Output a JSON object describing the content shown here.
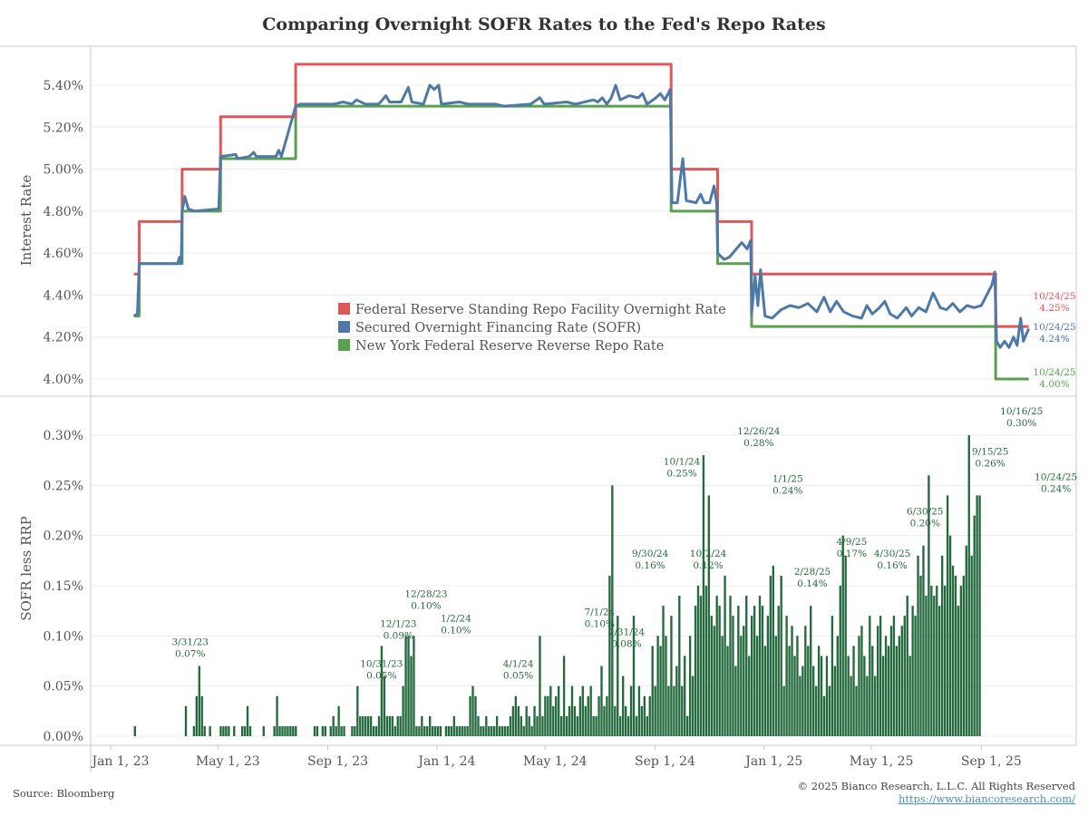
{
  "title": "Comparing Overnight SOFR Rates to the Fed's Repo Rates",
  "footer": {
    "source": "Source: Bloomberg",
    "copyright": "© 2025 Bianco Research, L.L.C. All Rights Reserved",
    "url": "https://www.biancoresearch.com/"
  },
  "colors": {
    "srf": "#e15759",
    "sofr": "#4e79a7",
    "rrp": "#59a14f",
    "spread": "#256a3e",
    "grid": "#ececec",
    "axis": "#c8c8c8"
  },
  "chart_data": [
    {
      "type": "line",
      "title": "Comparing Overnight SOFR Rates to the Fed's Repo Rates",
      "ylabel": "Interest Rate",
      "ylim": [
        3.95,
        5.56
      ],
      "yticks": [
        "4.00%",
        "4.20%",
        "4.40%",
        "4.60%",
        "4.80%",
        "5.00%",
        "5.20%",
        "5.40%"
      ],
      "ytick_values": [
        4.0,
        4.2,
        4.4,
        4.6,
        4.8,
        5.0,
        5.2,
        5.4
      ],
      "xticks": [
        "Jan 1, 23",
        "May 1, 23",
        "Sep 1, 23",
        "Jan 1, 24",
        "May 1, 24",
        "Sep 1, 24",
        "Jan 1, 25",
        "May 1, 25",
        "Sep 1, 25"
      ],
      "xtick_days": [
        0,
        120,
        243,
        365,
        486,
        609,
        731,
        851,
        974
      ],
      "xlim_days": [
        -22,
        1080
      ],
      "grid": true,
      "legend_position": "center",
      "series": [
        {
          "name": "Federal Reserve Standing Repo Facility Overnight Rate",
          "key": "srf",
          "steps": [
            [
              26,
              4.5
            ],
            [
              32,
              4.75
            ],
            [
              80,
              5.0
            ],
            [
              123,
              5.25
            ],
            [
              207,
              5.5
            ],
            [
              627,
              5.0
            ],
            [
              679,
              4.75
            ],
            [
              717,
              4.5
            ],
            [
              990,
              4.25
            ],
            [
              1027,
              4.25
            ]
          ],
          "end_label": "10/24/25",
          "end_value": "4.25%"
        },
        {
          "name": "Secured Overnight Financing Rate (SOFR)",
          "key": "sofr",
          "steps": [
            [
              26,
              4.3
            ],
            [
              30,
              4.31
            ],
            [
              32,
              4.55
            ],
            [
              75,
              4.55
            ],
            [
              77,
              4.58
            ],
            [
              79,
              4.55
            ],
            [
              80,
              4.8
            ],
            [
              83,
              4.87
            ],
            [
              87,
              4.81
            ],
            [
              94,
              4.8
            ],
            [
              121,
              4.81
            ],
            [
              123,
              5.06
            ],
            [
              140,
              5.07
            ],
            [
              142,
              5.05
            ],
            [
              155,
              5.06
            ],
            [
              160,
              5.08
            ],
            [
              163,
              5.06
            ],
            [
              185,
              5.06
            ],
            [
              188,
              5.09
            ],
            [
              191,
              5.06
            ],
            [
              207,
              5.3
            ],
            [
              212,
              5.31
            ],
            [
              230,
              5.31
            ],
            [
              250,
              5.31
            ],
            [
              260,
              5.32
            ],
            [
              270,
              5.31
            ],
            [
              275,
              5.33
            ],
            [
              285,
              5.31
            ],
            [
              300,
              5.31
            ],
            [
              308,
              5.35
            ],
            [
              312,
              5.32
            ],
            [
              325,
              5.32
            ],
            [
              333,
              5.39
            ],
            [
              337,
              5.32
            ],
            [
              350,
              5.31
            ],
            [
              357,
              5.4
            ],
            [
              362,
              5.38
            ],
            [
              367,
              5.4
            ],
            [
              370,
              5.31
            ],
            [
              390,
              5.32
            ],
            [
              400,
              5.31
            ],
            [
              430,
              5.31
            ],
            [
              440,
              5.3
            ],
            [
              470,
              5.31
            ],
            [
              480,
              5.34
            ],
            [
              485,
              5.31
            ],
            [
              510,
              5.32
            ],
            [
              520,
              5.31
            ],
            [
              540,
              5.33
            ],
            [
              545,
              5.32
            ],
            [
              550,
              5.34
            ],
            [
              555,
              5.31
            ],
            [
              560,
              5.34
            ],
            [
              565,
              5.4
            ],
            [
              570,
              5.33
            ],
            [
              580,
              5.35
            ],
            [
              590,
              5.34
            ],
            [
              595,
              5.36
            ],
            [
              600,
              5.31
            ],
            [
              610,
              5.34
            ],
            [
              615,
              5.36
            ],
            [
              620,
              5.33
            ],
            [
              626,
              5.38
            ],
            [
              628,
              4.84
            ],
            [
              634,
              4.84
            ],
            [
              640,
              5.05
            ],
            [
              644,
              4.85
            ],
            [
              655,
              4.84
            ],
            [
              660,
              4.88
            ],
            [
              664,
              4.84
            ],
            [
              670,
              4.84
            ],
            [
              675,
              4.92
            ],
            [
              678,
              4.84
            ],
            [
              679,
              4.6
            ],
            [
              686,
              4.57
            ],
            [
              692,
              4.58
            ],
            [
              700,
              4.62
            ],
            [
              706,
              4.65
            ],
            [
              712,
              4.62
            ],
            [
              716,
              4.66
            ],
            [
              717,
              4.31
            ],
            [
              721,
              4.49
            ],
            [
              724,
              4.35
            ],
            [
              727,
              4.52
            ],
            [
              732,
              4.3
            ],
            [
              740,
              4.29
            ],
            [
              750,
              4.33
            ],
            [
              760,
              4.35
            ],
            [
              770,
              4.34
            ],
            [
              780,
              4.36
            ],
            [
              790,
              4.32
            ],
            [
              798,
              4.39
            ],
            [
              805,
              4.32
            ],
            [
              812,
              4.37
            ],
            [
              820,
              4.32
            ],
            [
              830,
              4.3
            ],
            [
              840,
              4.29
            ],
            [
              846,
              4.35
            ],
            [
              852,
              4.31
            ],
            [
              860,
              4.34
            ],
            [
              866,
              4.37
            ],
            [
              872,
              4.31
            ],
            [
              880,
              4.29
            ],
            [
              890,
              4.34
            ],
            [
              896,
              4.3
            ],
            [
              904,
              4.34
            ],
            [
              912,
              4.32
            ],
            [
              920,
              4.41
            ],
            [
              928,
              4.34
            ],
            [
              935,
              4.33
            ],
            [
              942,
              4.36
            ],
            [
              950,
              4.32
            ],
            [
              958,
              4.35
            ],
            [
              966,
              4.34
            ],
            [
              974,
              4.35
            ],
            [
              980,
              4.4
            ],
            [
              986,
              4.45
            ],
            [
              989,
              4.51
            ],
            [
              991,
              4.18
            ],
            [
              995,
              4.15
            ],
            [
              1000,
              4.18
            ],
            [
              1005,
              4.15
            ],
            [
              1010,
              4.2
            ],
            [
              1014,
              4.16
            ],
            [
              1018,
              4.29
            ],
            [
              1021,
              4.18
            ],
            [
              1024,
              4.21
            ],
            [
              1027,
              4.24
            ]
          ],
          "end_label": "10/24/25",
          "end_value": "4.24%"
        },
        {
          "name": "New York Federal Reserve Reverse Repo Rate",
          "key": "rrp",
          "steps": [
            [
              26,
              4.3
            ],
            [
              32,
              4.55
            ],
            [
              80,
              4.8
            ],
            [
              123,
              5.05
            ],
            [
              207,
              5.3
            ],
            [
              627,
              4.8
            ],
            [
              679,
              4.55
            ],
            [
              717,
              4.25
            ],
            [
              990,
              4.0
            ],
            [
              1027,
              4.0
            ]
          ],
          "end_label": "10/24/25",
          "end_value": "4.00%"
        }
      ]
    },
    {
      "type": "bar",
      "ylabel": "SOFR less RRP",
      "ylim": [
        -0.005,
        0.33
      ],
      "yticks": [
        "0.00%",
        "0.05%",
        "0.10%",
        "0.15%",
        "0.20%",
        "0.25%",
        "0.30%"
      ],
      "ytick_values": [
        0.0,
        0.05,
        0.1,
        0.15,
        0.2,
        0.25,
        0.3
      ],
      "xticks": [
        "Jan 1, 23",
        "May 1, 23",
        "Sep 1, 23",
        "Jan 1, 24",
        "May 1, 24",
        "Sep 1, 24",
        "Jan 1, 25",
        "May 1, 25",
        "Sep 1, 25"
      ],
      "series_name": "SOFR less RRP",
      "start_day": 26,
      "bin_days": 3,
      "values": [
        0.01,
        0,
        0,
        0,
        0,
        0,
        0,
        0,
        0,
        0,
        0,
        0,
        0,
        0,
        0,
        0,
        0,
        0,
        0,
        0.03,
        0,
        0,
        0.01,
        0.04,
        0.07,
        0.04,
        0.01,
        0,
        0.01,
        0,
        0,
        0,
        0.01,
        0.01,
        0.01,
        0.01,
        0,
        0.01,
        0,
        0,
        0.01,
        0.01,
        0.03,
        0.01,
        0,
        0,
        0,
        0,
        0.01,
        0,
        0,
        0,
        0.01,
        0.04,
        0.01,
        0.01,
        0.01,
        0.01,
        0.01,
        0.01,
        0.01,
        0,
        0,
        0,
        0,
        0,
        0,
        0.01,
        0.01,
        0,
        0.01,
        0.01,
        0,
        0.01,
        0.02,
        0.01,
        0.03,
        0.01,
        0.01,
        0,
        0,
        0.01,
        0.01,
        0.05,
        0.02,
        0.02,
        0.02,
        0.02,
        0.02,
        0.01,
        0.01,
        0.02,
        0.09,
        0.06,
        0.02,
        0.02,
        0.02,
        0.01,
        0.02,
        0.02,
        0.05,
        0.1,
        0.1,
        0.08,
        0.1,
        0.01,
        0.01,
        0.02,
        0.01,
        0.01,
        0.02,
        0.01,
        0.01,
        0.01,
        0.01,
        0,
        0.01,
        0.01,
        0.01,
        0.02,
        0.01,
        0.01,
        0.01,
        0.01,
        0.01,
        0.04,
        0.05,
        0.04,
        0.02,
        0.01,
        0.01,
        0.02,
        0.01,
        0.01,
        0.01,
        0.02,
        0.01,
        0.01,
        0.01,
        0.01,
        0.02,
        0.03,
        0.04,
        0.03,
        0.02,
        0.01,
        0.03,
        0.02,
        0.01,
        0.03,
        0.02,
        0.1,
        0.02,
        0.04,
        0.04,
        0.05,
        0.03,
        0.04,
        0.05,
        0.02,
        0.08,
        0.02,
        0.03,
        0.05,
        0.03,
        0.02,
        0.04,
        0.05,
        0.03,
        0.04,
        0.05,
        0.02,
        0.02,
        0.04,
        0.07,
        0.03,
        0.04,
        0.16,
        0.25,
        0.03,
        0.12,
        0.02,
        0.06,
        0.03,
        0.02,
        0.05,
        0.12,
        0.02,
        0.05,
        0.03,
        0.04,
        0.02,
        0.04,
        0.09,
        0.05,
        0.1,
        0.09,
        0.13,
        0.1,
        0.05,
        0.12,
        0.05,
        0.07,
        0.14,
        0.05,
        0.08,
        0.02,
        0.1,
        0.06,
        0.13,
        0.15,
        0.14,
        0.28,
        0.15,
        0.24,
        0.12,
        0.11,
        0.14,
        0.13,
        0.1,
        0.16,
        0.09,
        0.14,
        0.12,
        0.07,
        0.13,
        0.1,
        0.11,
        0.14,
        0.08,
        0.12,
        0.13,
        0.1,
        0.14,
        0.13,
        0.09,
        0.12,
        0.16,
        0.17,
        0.1,
        0.13,
        0.16,
        0.05,
        0.12,
        0.09,
        0.11,
        0.08,
        0.1,
        0.06,
        0.07,
        0.11,
        0.09,
        0.13,
        0.07,
        0.05,
        0.09,
        0.08,
        0.04,
        0.08,
        0.05,
        0.12,
        0.07,
        0.1,
        0.15,
        0.2,
        0.18,
        0.08,
        0.06,
        0.09,
        0.05,
        0.1,
        0.11,
        0.08,
        0.06,
        0.12,
        0.09,
        0.06,
        0.11,
        0.12,
        0.08,
        0.1,
        0.09,
        0.11,
        0.12,
        0.09,
        0.1,
        0.11,
        0.12,
        0.14,
        0.08,
        0.13,
        0.12,
        0.18,
        0.16,
        0.19,
        0.14,
        0.26,
        0.15,
        0.14,
        0.15,
        0.13,
        0.18,
        0.15,
        0.24,
        0.2,
        0.17,
        0.16,
        0.13,
        0.15,
        0.16,
        0.19,
        0.3,
        0.18,
        0.22,
        0.24,
        0.24
      ],
      "annotations": [
        {
          "date": "3/31/23",
          "value": "0.07%",
          "day": 89,
          "v": 0.07
        },
        {
          "date": "10/31/23",
          "value": "0.05%",
          "day": 303,
          "v": 0.05
        },
        {
          "date": "12/1/23",
          "value": "0.09%",
          "day": 334,
          "v": 0.09
        },
        {
          "date": "12/28/23",
          "value": "0.10%",
          "day": 361,
          "v": 0.1
        },
        {
          "date": "1/2/24",
          "value": "0.10%",
          "day": 366,
          "v": 0.1
        },
        {
          "date": "4/1/24",
          "value": "0.05%",
          "day": 456,
          "v": 0.05
        },
        {
          "date": "7/1/24",
          "value": "0.10%",
          "day": 547,
          "v": 0.1
        },
        {
          "date": "7/31/24",
          "value": "0.08%",
          "day": 577,
          "v": 0.08
        },
        {
          "date": "9/30/24",
          "value": "0.16%",
          "day": 638,
          "v": 0.16
        },
        {
          "date": "10/1/24",
          "value": "0.25%",
          "day": 639,
          "v": 0.25
        },
        {
          "date": "10/2/24",
          "value": "0.12%",
          "day": 640,
          "v": 0.12
        },
        {
          "date": "12/26/24",
          "value": "0.28%",
          "day": 725,
          "v": 0.28
        },
        {
          "date": "1/1/25",
          "value": "0.24%",
          "day": 731,
          "v": 0.24
        },
        {
          "date": "2/28/25",
          "value": "0.14%",
          "day": 789,
          "v": 0.14
        },
        {
          "date": "4/9/25",
          "value": "0.17%",
          "day": 829,
          "v": 0.17
        },
        {
          "date": "4/30/25",
          "value": "0.16%",
          "day": 850,
          "v": 0.16
        },
        {
          "date": "6/30/25",
          "value": "0.20%",
          "day": 911,
          "v": 0.2
        },
        {
          "date": "9/15/25",
          "value": "0.26%",
          "day": 988,
          "v": 0.26
        },
        {
          "date": "10/16/25",
          "value": "0.30%",
          "day": 1019,
          "v": 0.3
        },
        {
          "date": "10/24/25",
          "value": "0.24%",
          "day": 1027,
          "v": 0.24
        }
      ]
    }
  ]
}
